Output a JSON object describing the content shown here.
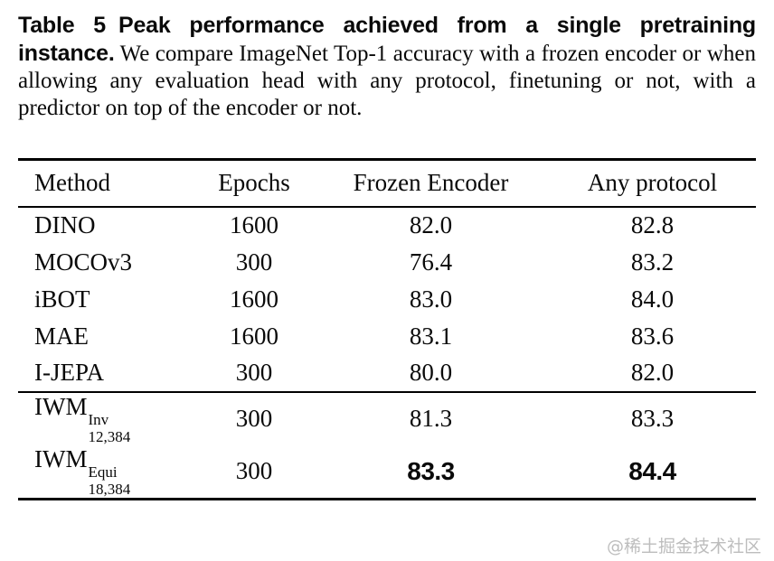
{
  "caption": {
    "tag": "Table 5",
    "title": "Peak performance achieved from a single pretraining instance.",
    "body": "We compare ImageNet Top-1 accuracy with a frozen encoder or when allowing any evaluation head with any protocol, finetuning or not, with a predictor on top of the encoder or not."
  },
  "table": {
    "columns": [
      "Method",
      "Epochs",
      "Frozen Encoder",
      "Any protocol"
    ],
    "baseline_rows": [
      {
        "method": "DINO",
        "epochs": "1600",
        "frozen": "82.0",
        "any": "82.8"
      },
      {
        "method": "MOCOv3",
        "epochs": "300",
        "frozen": "76.4",
        "any": "83.2"
      },
      {
        "method": "iBOT",
        "epochs": "1600",
        "frozen": "83.0",
        "any": "84.0"
      },
      {
        "method": "MAE",
        "epochs": "1600",
        "frozen": "83.1",
        "any": "83.6"
      },
      {
        "method": "I-JEPA",
        "epochs": "300",
        "frozen": "80.0",
        "any": "82.0"
      }
    ],
    "iwm_rows": [
      {
        "method_base": "IWM",
        "method_sup": "Inv",
        "method_sub": "12,384",
        "epochs": "300",
        "frozen": "81.3",
        "any": "83.3"
      },
      {
        "method_base": "IWM",
        "method_sup": "Equi",
        "method_sub": "18,384",
        "epochs": "300",
        "frozen": "83.3",
        "any": "84.4"
      }
    ]
  },
  "watermark": "@稀土掘金技术社区",
  "colors": {
    "text": "#0a0a0a",
    "background": "#ffffff",
    "watermark": "#bdbdbd"
  }
}
